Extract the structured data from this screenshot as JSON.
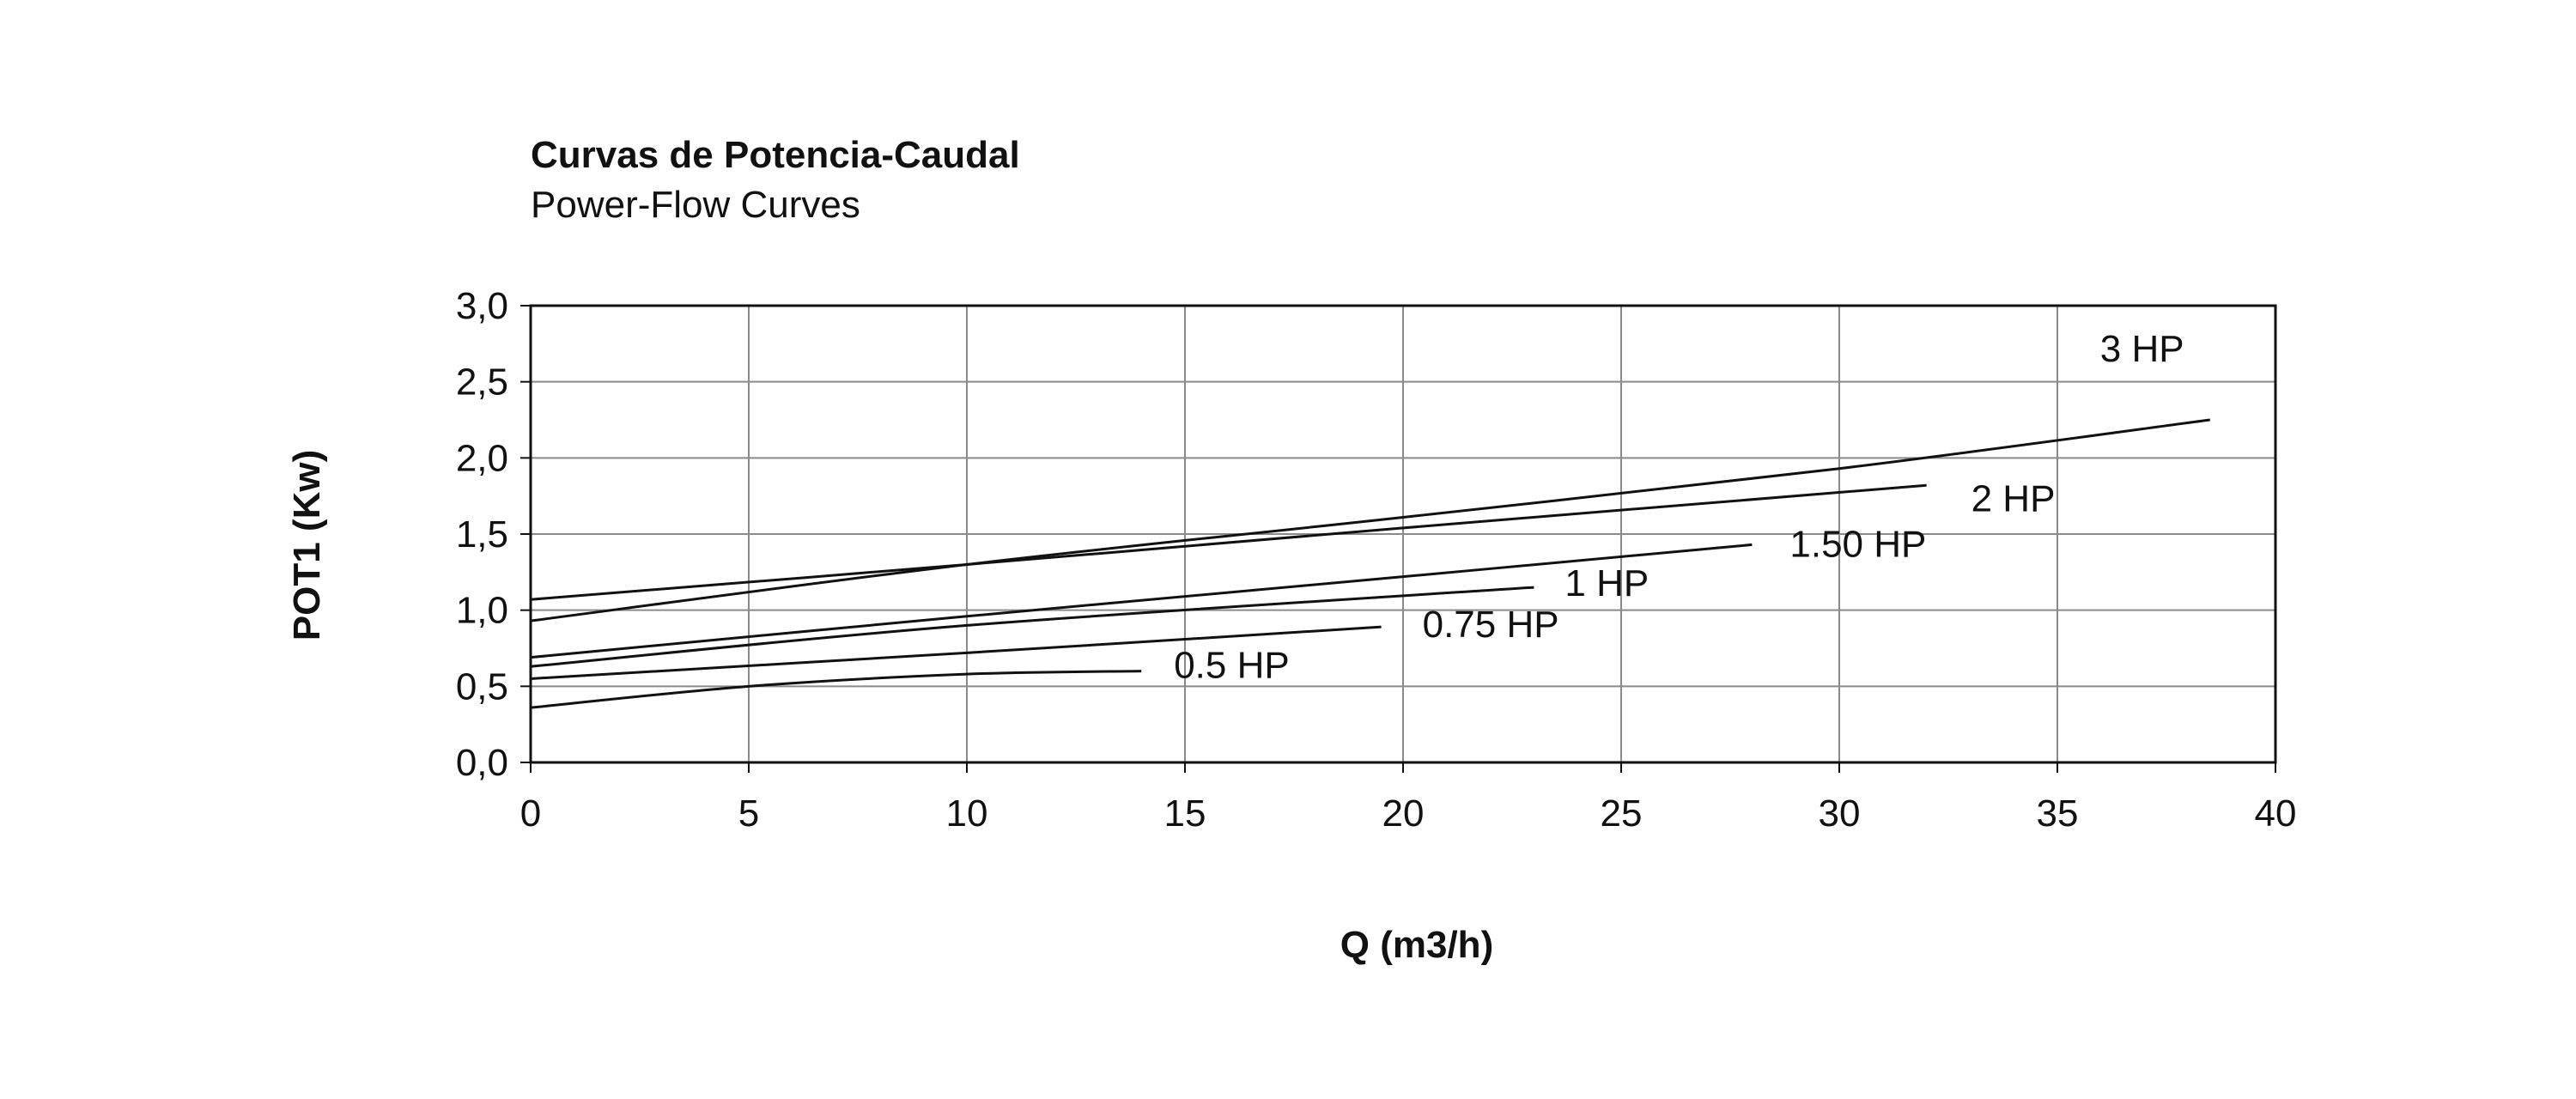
{
  "chart_data": {
    "type": "line",
    "title": "Curvas de Potencia-Caudal",
    "subtitle": "Power-Flow Curves",
    "xlabel": "Q (m3/h)",
    "ylabel": "POT1 (Kw)",
    "xlim": [
      0,
      40
    ],
    "ylim": [
      0,
      3
    ],
    "xticks": [
      0,
      5,
      10,
      15,
      20,
      25,
      30,
      35,
      40
    ],
    "xtick_labels": [
      "0",
      "5",
      "10",
      "15",
      "20",
      "25",
      "30",
      "35",
      "40"
    ],
    "yticks": [
      0,
      0.5,
      1.0,
      1.5,
      2.0,
      2.5,
      3.0
    ],
    "ytick_labels": [
      "0,0",
      "0,5",
      "1,0",
      "1,5",
      "2,0",
      "2,5",
      "3,0"
    ],
    "grid": true,
    "legend": "inline labels at curve ends",
    "series": [
      {
        "name": "0.5 HP",
        "x": [
          0,
          5,
          10,
          14
        ],
        "y": [
          0.36,
          0.5,
          0.58,
          0.6
        ]
      },
      {
        "name": "0.75 HP",
        "x": [
          0,
          10,
          19.5
        ],
        "y": [
          0.55,
          0.72,
          0.89
        ]
      },
      {
        "name": "1 HP",
        "x": [
          0,
          10,
          23
        ],
        "y": [
          0.63,
          0.9,
          1.15
        ]
      },
      {
        "name": "1.50 HP",
        "x": [
          0,
          10,
          20,
          28
        ],
        "y": [
          0.69,
          0.96,
          1.22,
          1.43
        ]
      },
      {
        "name": "2 HP",
        "x": [
          0,
          10,
          20,
          32
        ],
        "y": [
          1.07,
          1.3,
          1.54,
          1.82
        ]
      },
      {
        "name": "3 HP",
        "x": [
          0,
          10,
          20,
          30,
          38.5
        ],
        "y": [
          0.93,
          1.3,
          1.61,
          1.93,
          2.25
        ]
      }
    ]
  }
}
